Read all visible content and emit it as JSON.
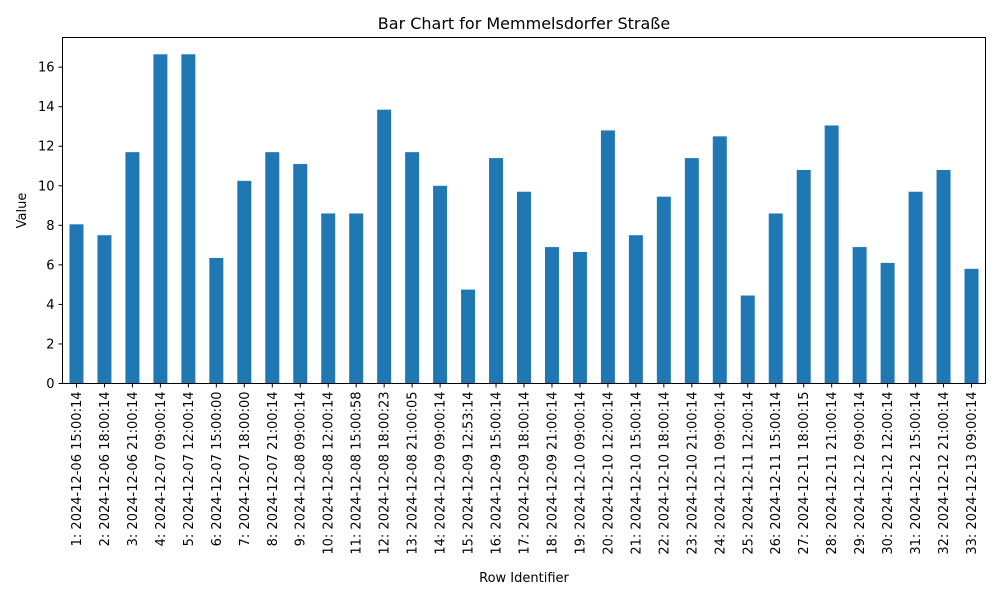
{
  "chart_data": {
    "type": "bar",
    "title": "Bar Chart for Memmelsdorfer Straße",
    "xlabel": "Row Identifier",
    "ylabel": "Value",
    "ylim": [
      0,
      17.5
    ],
    "yticks": [
      0,
      2,
      4,
      6,
      8,
      10,
      12,
      14,
      16
    ],
    "grid": false,
    "bar_color": "#1f77b4",
    "categories": [
      "1: 2024-12-06 15:00:14",
      "2: 2024-12-06 18:00:14",
      "3: 2024-12-06 21:00:14",
      "4: 2024-12-07 09:00:14",
      "5: 2024-12-07 12:00:14",
      "6: 2024-12-07 15:00:00",
      "7: 2024-12-07 18:00:00",
      "8: 2024-12-07 21:00:14",
      "9: 2024-12-08 09:00:14",
      "10: 2024-12-08 12:00:14",
      "11: 2024-12-08 15:00:58",
      "12: 2024-12-08 18:00:23",
      "13: 2024-12-08 21:00:05",
      "14: 2024-12-09 09:00:14",
      "15: 2024-12-09 12:53:14",
      "16: 2024-12-09 15:00:14",
      "17: 2024-12-09 18:00:14",
      "18: 2024-12-09 21:00:14",
      "19: 2024-12-10 09:00:14",
      "20: 2024-12-10 12:00:14",
      "21: 2024-12-10 15:00:14",
      "22: 2024-12-10 18:00:14",
      "23: 2024-12-10 21:00:14",
      "24: 2024-12-11 09:00:14",
      "25: 2024-12-11 12:00:14",
      "26: 2024-12-11 15:00:14",
      "27: 2024-12-11 18:00:15",
      "28: 2024-12-11 21:00:14",
      "29: 2024-12-12 09:00:14",
      "30: 2024-12-12 12:00:14",
      "31: 2024-12-12 15:00:14",
      "32: 2024-12-12 21:00:14",
      "33: 2024-12-13 09:00:14"
    ],
    "values": [
      8.05,
      7.5,
      11.7,
      16.65,
      16.65,
      6.35,
      10.25,
      11.7,
      11.1,
      8.6,
      8.6,
      13.85,
      11.7,
      10.0,
      4.75,
      11.4,
      9.7,
      6.9,
      6.65,
      12.8,
      7.5,
      9.45,
      11.4,
      12.5,
      4.45,
      8.6,
      10.8,
      13.05,
      6.9,
      6.1,
      9.7,
      10.8,
      5.8
    ]
  }
}
